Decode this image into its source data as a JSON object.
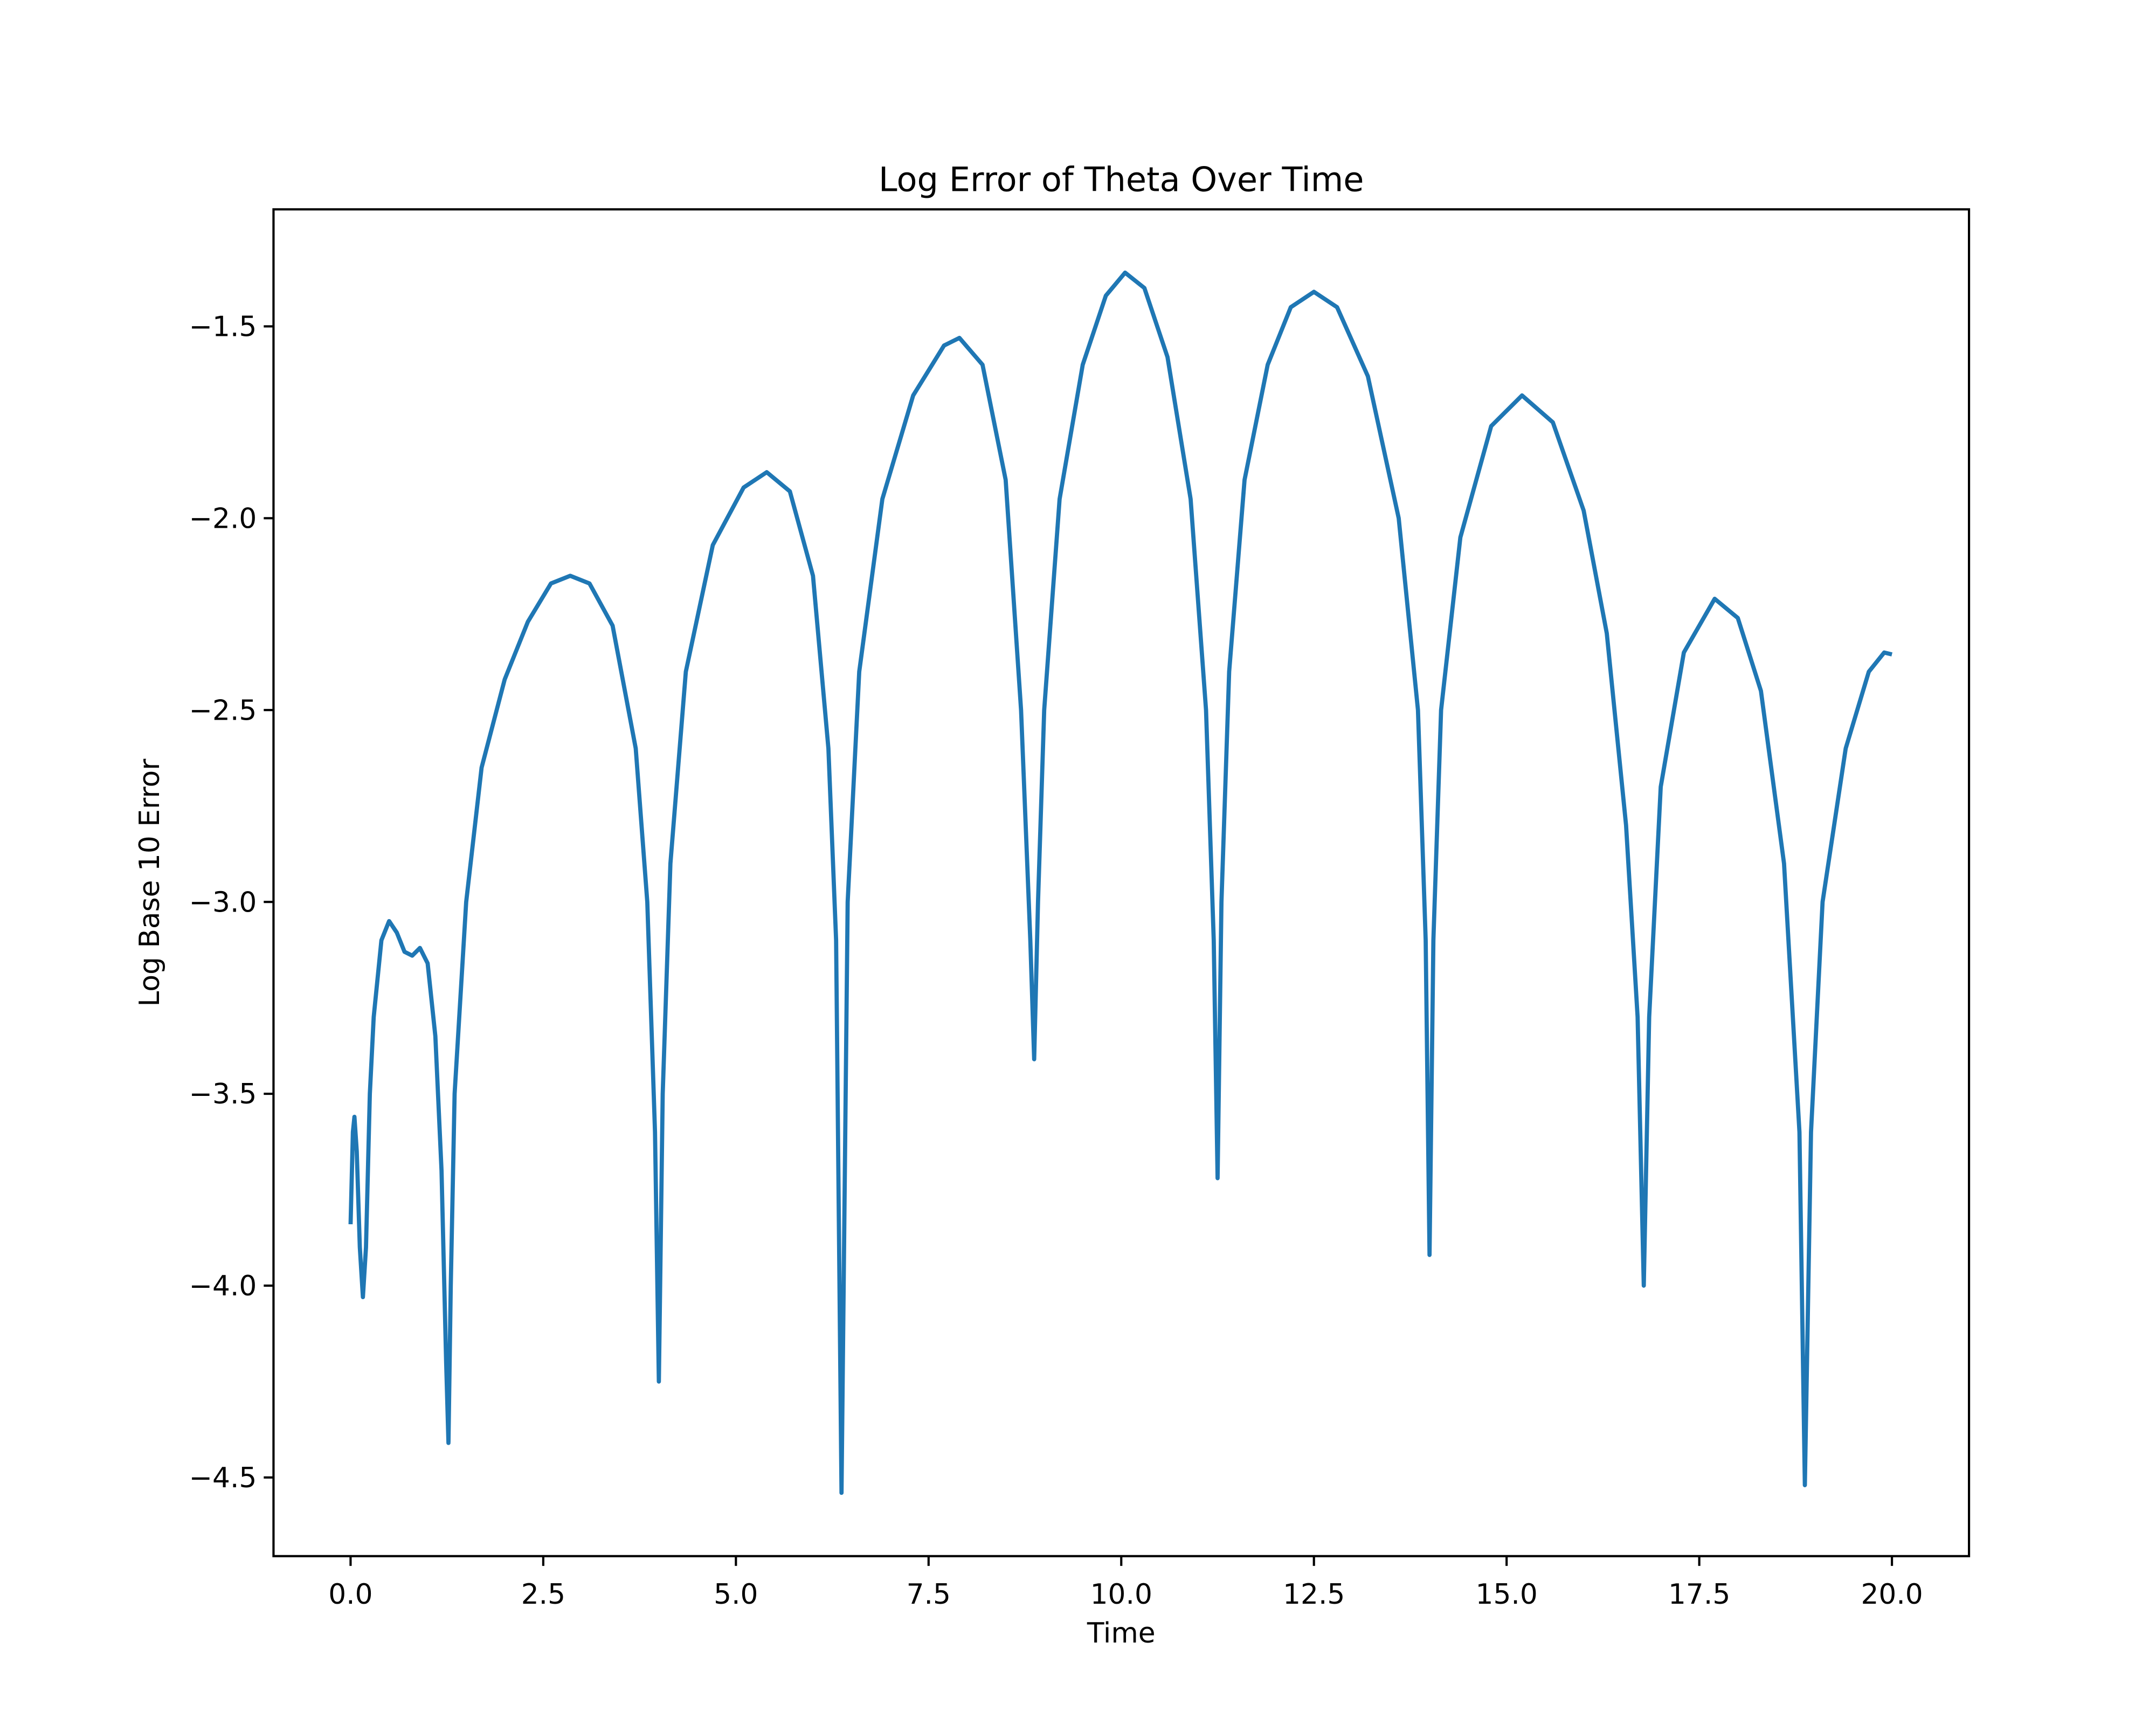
{
  "chart_data": {
    "type": "line",
    "title": "Log Error of Theta Over Time",
    "xlabel": "Time",
    "ylabel": "Log Base 10 Error",
    "x": [
      0,
      0.03,
      0.05,
      0.08,
      0.12,
      0.16,
      0.2,
      0.25,
      0.3,
      0.4,
      0.5,
      0.6,
      0.7,
      0.8,
      0.9,
      1.0,
      1.1,
      1.18,
      1.24,
      1.27,
      1.3,
      1.35,
      1.5,
      1.7,
      2.0,
      2.3,
      2.6,
      2.85,
      3.1,
      3.4,
      3.7,
      3.85,
      3.95,
      4.0,
      4.05,
      4.15,
      4.35,
      4.7,
      5.1,
      5.4,
      5.7,
      6.0,
      6.2,
      6.3,
      6.37,
      6.45,
      6.6,
      6.9,
      7.3,
      7.7,
      7.9,
      8.2,
      8.5,
      8.7,
      8.82,
      8.87,
      8.92,
      9.0,
      9.2,
      9.5,
      9.8,
      10.05,
      10.3,
      10.6,
      10.9,
      11.1,
      11.2,
      11.25,
      11.3,
      11.4,
      11.6,
      11.9,
      12.2,
      12.5,
      12.8,
      13.2,
      13.6,
      13.85,
      13.95,
      14.0,
      14.05,
      14.15,
      14.4,
      14.8,
      15.2,
      15.6,
      16.0,
      16.3,
      16.55,
      16.7,
      16.78,
      16.85,
      17.0,
      17.3,
      17.7,
      18.0,
      18.3,
      18.6,
      18.8,
      18.87,
      18.95,
      19.1,
      19.4,
      19.7,
      19.9,
      20.0
    ],
    "series": [
      {
        "color": "#1f77b4",
        "values": [
          -3.84,
          -3.6,
          -3.56,
          -3.65,
          -3.9,
          -4.03,
          -3.9,
          -3.5,
          -3.3,
          -3.1,
          -3.05,
          -3.08,
          -3.13,
          -3.14,
          -3.12,
          -3.16,
          -3.35,
          -3.7,
          -4.2,
          -4.41,
          -4.0,
          -3.5,
          -3.0,
          -2.65,
          -2.42,
          -2.27,
          -2.17,
          -2.15,
          -2.17,
          -2.28,
          -2.6,
          -3.0,
          -3.6,
          -4.25,
          -3.5,
          -2.9,
          -2.4,
          -2.07,
          -1.92,
          -1.88,
          -1.93,
          -2.15,
          -2.6,
          -3.1,
          -4.54,
          -3.0,
          -2.4,
          -1.95,
          -1.68,
          -1.55,
          -1.53,
          -1.6,
          -1.9,
          -2.5,
          -3.1,
          -3.41,
          -3.0,
          -2.5,
          -1.95,
          -1.6,
          -1.42,
          -1.36,
          -1.4,
          -1.58,
          -1.95,
          -2.5,
          -3.1,
          -3.72,
          -3.0,
          -2.4,
          -1.9,
          -1.6,
          -1.45,
          -1.41,
          -1.45,
          -1.63,
          -2.0,
          -2.5,
          -3.1,
          -3.92,
          -3.1,
          -2.5,
          -2.05,
          -1.76,
          -1.68,
          -1.75,
          -1.98,
          -2.3,
          -2.8,
          -3.3,
          -4.0,
          -3.3,
          -2.7,
          -2.35,
          -2.21,
          -2.26,
          -2.45,
          -2.9,
          -3.6,
          -4.52,
          -3.6,
          -3.0,
          -2.6,
          -2.4,
          -2.35,
          -2.355
        ]
      }
    ],
    "xlim": [
      -1,
      21
    ],
    "ylim": [
      -4.705,
      -1.195
    ],
    "xticks": [
      {
        "value": 0,
        "label": "0.0"
      },
      {
        "value": 2.5,
        "label": "2.5"
      },
      {
        "value": 5,
        "label": "5.0"
      },
      {
        "value": 7.5,
        "label": "7.5"
      },
      {
        "value": 10,
        "label": "10.0"
      },
      {
        "value": 12.5,
        "label": "12.5"
      },
      {
        "value": 15,
        "label": "15.0"
      },
      {
        "value": 17.5,
        "label": "17.5"
      },
      {
        "value": 20,
        "label": "20.0"
      }
    ],
    "yticks": [
      {
        "value": -1.5,
        "label": "−1.5"
      },
      {
        "value": -2,
        "label": "−2.0"
      },
      {
        "value": -2.5,
        "label": "−2.5"
      },
      {
        "value": -3,
        "label": "−3.0"
      },
      {
        "value": -3.5,
        "label": "−3.5"
      },
      {
        "value": -4,
        "label": "−4.0"
      },
      {
        "value": -4.5,
        "label": "−4.5"
      }
    ],
    "grid": false
  }
}
